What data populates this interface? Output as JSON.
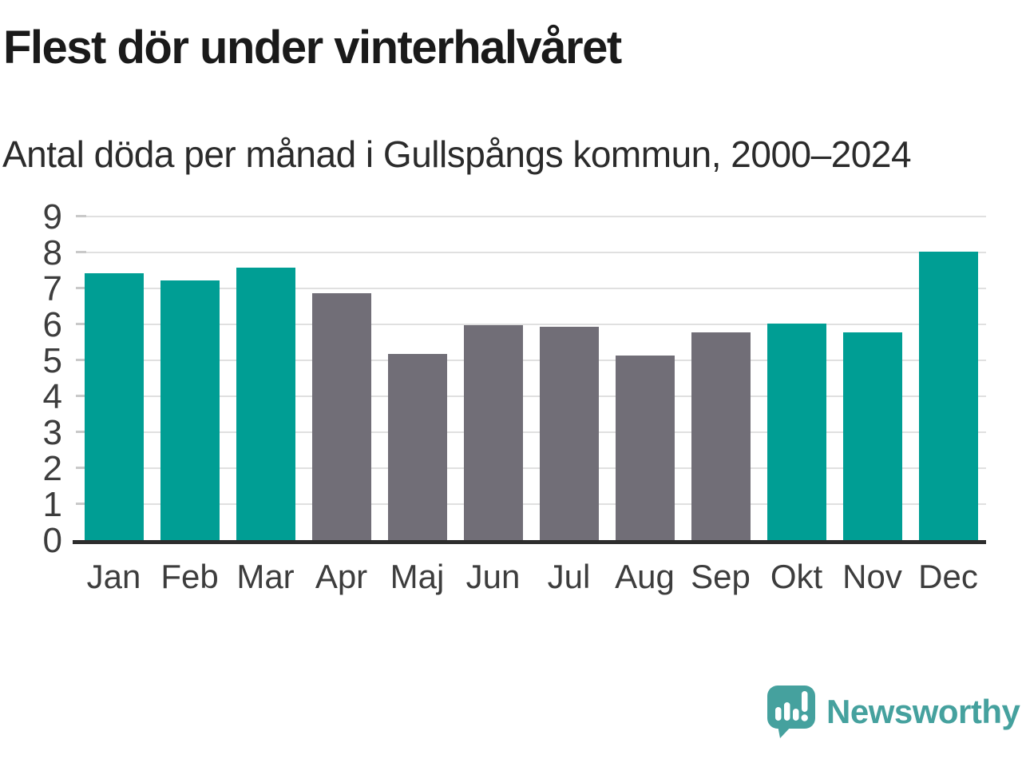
{
  "header": {
    "title": "Flest dör under vinterhalvåret",
    "subtitle": "Antal döda per månad i Gullspångs kommun, 2000–2024"
  },
  "chart_data": {
    "type": "bar",
    "title": "Flest dör under vinterhalvåret",
    "subtitle": "Antal döda per månad i Gullspångs kommun, 2000–2024",
    "categories": [
      "Jan",
      "Feb",
      "Mar",
      "Apr",
      "Maj",
      "Jun",
      "Jul",
      "Aug",
      "Sep",
      "Okt",
      "Nov",
      "Dec"
    ],
    "values": [
      7.45,
      7.25,
      7.6,
      6.9,
      5.2,
      6.0,
      5.95,
      5.15,
      5.8,
      6.05,
      5.8,
      8.05
    ],
    "bar_color_keys": [
      "teal",
      "teal",
      "teal",
      "gray",
      "gray",
      "gray",
      "gray",
      "gray",
      "gray",
      "teal",
      "teal",
      "teal"
    ],
    "colors": {
      "teal": "#009e94",
      "gray": "#716e77"
    },
    "color_meaning": {
      "teal": "winter half-year months",
      "gray": "summer half-year months"
    },
    "xlabel": "",
    "ylabel": "",
    "ylim": [
      0,
      9
    ],
    "yticks": [
      0,
      1,
      2,
      3,
      4,
      5,
      6,
      7,
      8,
      9
    ],
    "grid": true,
    "legend": "none",
    "axis_line_color": "#2d2d2d",
    "gridline_color": "#e0e0e0"
  },
  "branding": {
    "logo_text": "Newsworthy",
    "logo_color": "#45a19e",
    "logo_icon": "newsworthy-speech-bubble-bar-chart-icon"
  }
}
